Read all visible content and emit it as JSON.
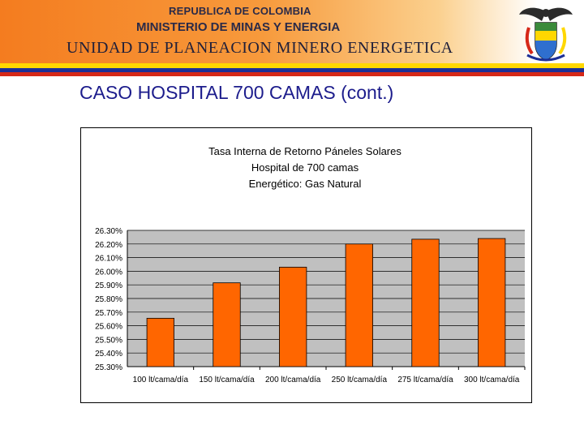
{
  "header": {
    "line1": "REPUBLICA DE COLOMBIA",
    "line2": "MINISTERIO DE MINAS Y ENERGIA",
    "line3": "UNIDAD DE PLANEACION MINERO ENERGETICA"
  },
  "colors": {
    "header_orange": "#f47c1f",
    "flag_yellow": "#ffd700",
    "flag_blue": "#1c2f96",
    "flag_red": "#d62818",
    "bar_fill": "#ff6600",
    "plot_bg": "#c0c0c0",
    "title_blue": "#1c1c8c"
  },
  "slide": {
    "title": "CASO HOSPITAL 700 CAMAS (cont.)"
  },
  "chart_data": {
    "type": "bar",
    "title": [
      "Tasa Interna de Retorno Páneles Solares",
      "Hospital de 700 camas",
      "Energético: Gas Natural"
    ],
    "categories": [
      "100 lt/cama/día",
      "150 lt/cama/día",
      "200 lt/cama/día",
      "250 lt/cama/día",
      "275 lt/cama/día",
      "300 lt/cama/día"
    ],
    "values": [
      25.655,
      25.915,
      26.03,
      26.2,
      26.235,
      26.24
    ],
    "ylim": [
      25.3,
      26.3
    ],
    "ytick_step": 0.1,
    "ytick_labels": [
      "26.30%",
      "26.20%",
      "26.10%",
      "26.00%",
      "25.90%",
      "25.80%",
      "25.70%",
      "25.60%",
      "25.50%",
      "25.40%",
      "25.30%"
    ],
    "xlabel": "",
    "ylabel": "",
    "grid": true,
    "legend": "none"
  }
}
